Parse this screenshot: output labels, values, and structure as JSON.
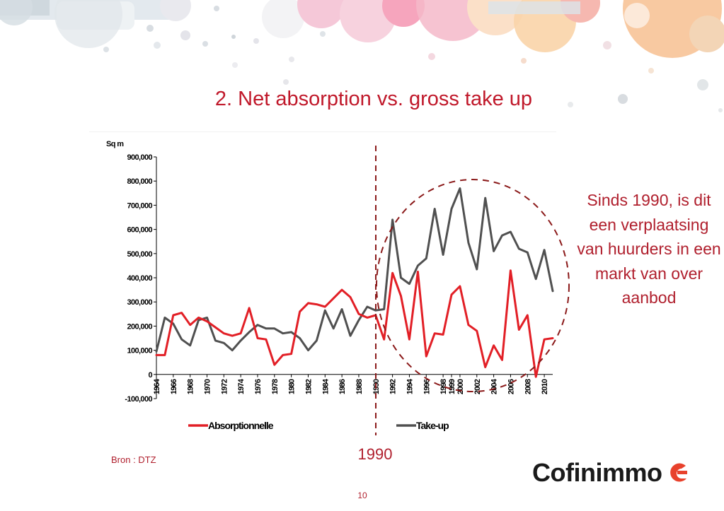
{
  "slide": {
    "title": "2. Net absorption vs. gross take up",
    "annotation": "Sinds 1990, is dit een verplaatsing van huurders in een markt van over aanbod",
    "year_marker": "1990",
    "source": "Bron : DTZ",
    "page_number": "10",
    "brand_name": "Cofinimmo",
    "colors": {
      "accent": "#c0182a",
      "absorption": "#e21f26",
      "takeup": "#505050"
    }
  },
  "chart_data": {
    "type": "line",
    "ylabel": "Sq m",
    "ylim": [
      -100000,
      900000
    ],
    "y_ticks": [
      "900,000",
      "800,000",
      "700,000",
      "600,000",
      "500,000",
      "400,000",
      "300,000",
      "200,000",
      "100,000",
      "0",
      "-100,000"
    ],
    "y_tick_values": [
      900000,
      800000,
      700000,
      600000,
      500000,
      400000,
      300000,
      200000,
      100000,
      0,
      -100000
    ],
    "x": [
      1964,
      1965,
      1966,
      1967,
      1968,
      1969,
      1970,
      1971,
      1972,
      1973,
      1974,
      1975,
      1976,
      1977,
      1978,
      1979,
      1980,
      1981,
      1982,
      1983,
      1984,
      1985,
      1986,
      1987,
      1988,
      1989,
      1990,
      1991,
      1992,
      1993,
      1994,
      1995,
      1996,
      1997,
      1998,
      1999,
      2000,
      2001,
      2002,
      2003,
      2004,
      2005,
      2006,
      2007,
      2008,
      2009,
      2010,
      2011
    ],
    "x_tick_labels": [
      "1964",
      "1966",
      "1968",
      "1970",
      "1972",
      "1974",
      "1976",
      "1978",
      "1980",
      "1982",
      "1984",
      "1986",
      "1988",
      "1990",
      "1992",
      "1994",
      "1996",
      "1998",
      "1999",
      "2000",
      "2002",
      "2004",
      "2006",
      "2008",
      "2010"
    ],
    "x_tick_values": [
      1964,
      1966,
      1968,
      1970,
      1972,
      1974,
      1976,
      1978,
      1980,
      1982,
      1984,
      1986,
      1988,
      1990,
      1992,
      1994,
      1996,
      1998,
      1999,
      2000,
      2002,
      2004,
      2006,
      2008,
      2010
    ],
    "grid": false,
    "legend_position": "bottom",
    "series": [
      {
        "name": "Absorptionnelle",
        "values": [
          80000,
          80000,
          245000,
          255000,
          205000,
          235000,
          220000,
          195000,
          170000,
          160000,
          170000,
          275000,
          150000,
          145000,
          40000,
          80000,
          85000,
          260000,
          295000,
          290000,
          280000,
          315000,
          350000,
          320000,
          250000,
          235000,
          245000,
          145000,
          420000,
          325000,
          145000,
          425000,
          75000,
          170000,
          165000,
          330000,
          365000,
          205000,
          180000,
          30000,
          120000,
          60000,
          430000,
          185000,
          245000,
          -10000,
          145000,
          150000
        ]
      },
      {
        "name": "Take-up",
        "values": [
          95000,
          235000,
          210000,
          145000,
          120000,
          225000,
          235000,
          140000,
          130000,
          100000,
          140000,
          175000,
          205000,
          190000,
          190000,
          170000,
          175000,
          150000,
          100000,
          140000,
          265000,
          190000,
          270000,
          160000,
          225000,
          280000,
          265000,
          270000,
          640000,
          400000,
          375000,
          450000,
          480000,
          685000,
          495000,
          685000,
          770000,
          545000,
          435000,
          730000,
          510000,
          575000,
          590000,
          520000,
          505000,
          395000,
          515000,
          345000
        ]
      }
    ]
  }
}
